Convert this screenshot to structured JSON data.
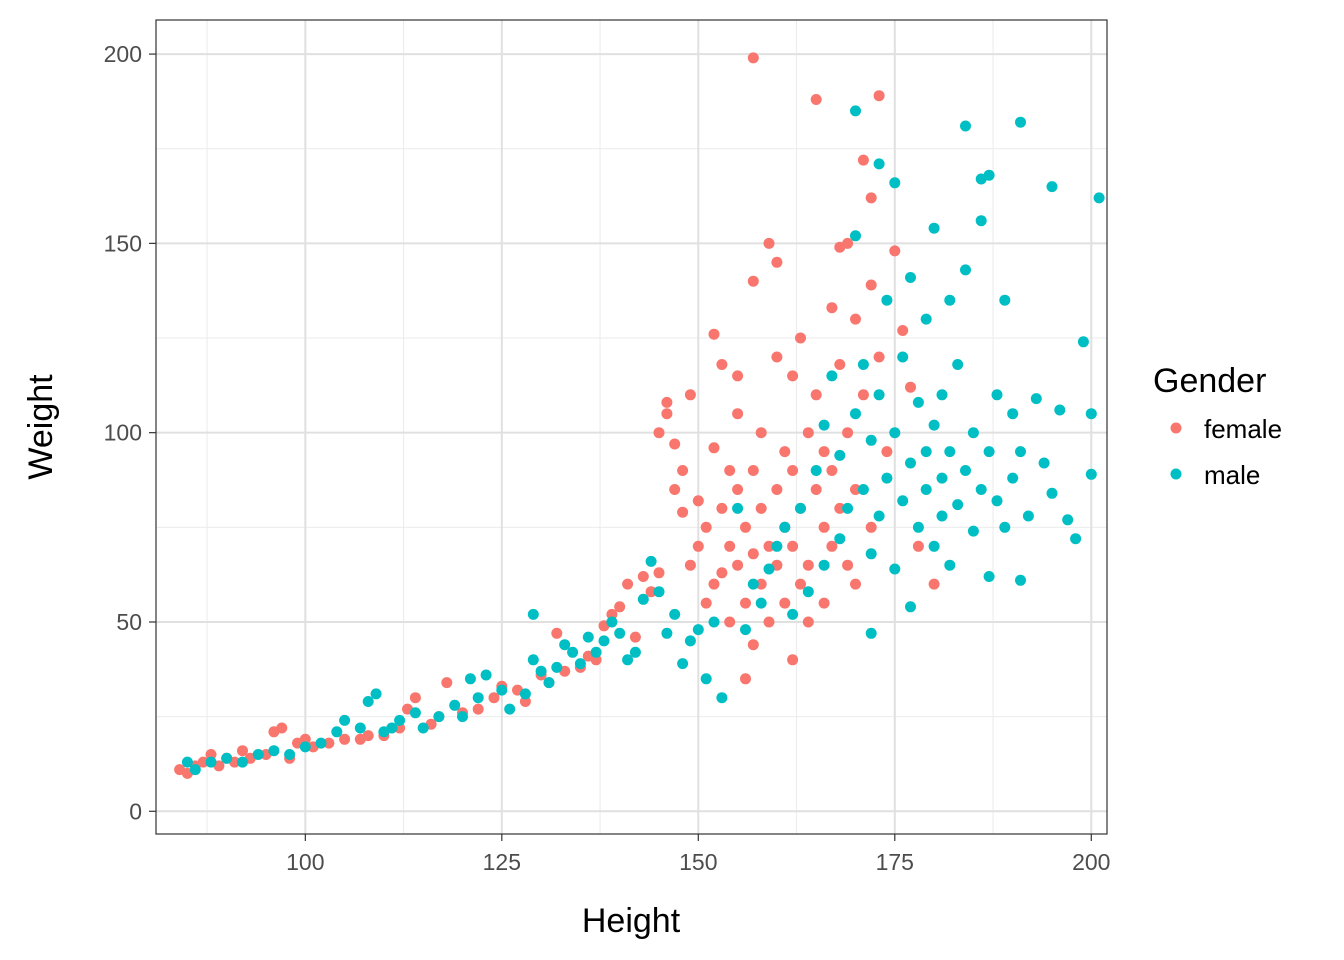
{
  "chart_data": {
    "type": "scatter",
    "xlabel": "Height",
    "ylabel": "Weight",
    "xlim": [
      81,
      202
    ],
    "ylim": [
      -6,
      209
    ],
    "x_ticks": [
      100,
      125,
      150,
      175,
      200
    ],
    "y_ticks": [
      0,
      50,
      100,
      150,
      200
    ],
    "grid": true,
    "legend": {
      "title": "Gender",
      "position": "right"
    },
    "series": [
      {
        "name": "female",
        "color": "#F8766D",
        "points": [
          [
            84,
            11
          ],
          [
            85,
            10
          ],
          [
            86,
            12
          ],
          [
            87,
            13
          ],
          [
            88,
            15
          ],
          [
            89,
            12
          ],
          [
            90,
            14
          ],
          [
            91,
            13
          ],
          [
            92,
            16
          ],
          [
            93,
            14
          ],
          [
            95,
            15
          ],
          [
            96,
            21
          ],
          [
            97,
            22
          ],
          [
            98,
            14
          ],
          [
            99,
            18
          ],
          [
            100,
            19
          ],
          [
            101,
            17
          ],
          [
            103,
            18
          ],
          [
            105,
            19
          ],
          [
            107,
            19
          ],
          [
            108,
            20
          ],
          [
            110,
            20
          ],
          [
            112,
            22
          ],
          [
            113,
            27
          ],
          [
            114,
            30
          ],
          [
            116,
            23
          ],
          [
            117,
            25
          ],
          [
            118,
            34
          ],
          [
            120,
            26
          ],
          [
            122,
            27
          ],
          [
            124,
            30
          ],
          [
            125,
            33
          ],
          [
            127,
            32
          ],
          [
            128,
            29
          ],
          [
            130,
            36
          ],
          [
            131,
            34
          ],
          [
            132,
            47
          ],
          [
            133,
            37
          ],
          [
            135,
            38
          ],
          [
            136,
            41
          ],
          [
            137,
            40
          ],
          [
            138,
            49
          ],
          [
            139,
            52
          ],
          [
            140,
            54
          ],
          [
            141,
            60
          ],
          [
            142,
            46
          ],
          [
            143,
            62
          ],
          [
            144,
            58
          ],
          [
            145,
            63
          ],
          [
            145,
            100
          ],
          [
            146,
            105
          ],
          [
            146,
            108
          ],
          [
            147,
            85
          ],
          [
            147,
            97
          ],
          [
            148,
            79
          ],
          [
            148,
            90
          ],
          [
            149,
            65
          ],
          [
            149,
            110
          ],
          [
            150,
            82
          ],
          [
            150,
            70
          ],
          [
            151,
            75
          ],
          [
            151,
            55
          ],
          [
            152,
            60
          ],
          [
            152,
            96
          ],
          [
            152,
            126
          ],
          [
            153,
            80
          ],
          [
            153,
            63
          ],
          [
            153,
            118
          ],
          [
            154,
            70
          ],
          [
            154,
            50
          ],
          [
            154,
            90
          ],
          [
            155,
            85
          ],
          [
            155,
            65
          ],
          [
            155,
            115
          ],
          [
            155,
            105
          ],
          [
            156,
            75
          ],
          [
            156,
            55
          ],
          [
            156,
            35
          ],
          [
            157,
            90
          ],
          [
            157,
            68
          ],
          [
            157,
            44
          ],
          [
            157,
            140
          ],
          [
            157,
            199
          ],
          [
            158,
            80
          ],
          [
            158,
            60
          ],
          [
            158,
            100
          ],
          [
            159,
            70
          ],
          [
            159,
            50
          ],
          [
            159,
            150
          ],
          [
            160,
            85
          ],
          [
            160,
            65
          ],
          [
            160,
            120
          ],
          [
            160,
            145
          ],
          [
            161,
            95
          ],
          [
            161,
            55
          ],
          [
            161,
            75
          ],
          [
            162,
            90
          ],
          [
            162,
            70
          ],
          [
            162,
            40
          ],
          [
            162,
            115
          ],
          [
            163,
            80
          ],
          [
            163,
            60
          ],
          [
            163,
            125
          ],
          [
            164,
            100
          ],
          [
            164,
            65
          ],
          [
            164,
            50
          ],
          [
            165,
            85
          ],
          [
            165,
            110
          ],
          [
            165,
            188
          ],
          [
            166,
            75
          ],
          [
            166,
            95
          ],
          [
            166,
            55
          ],
          [
            167,
            90
          ],
          [
            167,
            70
          ],
          [
            167,
            133
          ],
          [
            168,
            80
          ],
          [
            168,
            118
          ],
          [
            168,
            149
          ],
          [
            169,
            65
          ],
          [
            169,
            100
          ],
          [
            169,
            150
          ],
          [
            170,
            85
          ],
          [
            170,
            60
          ],
          [
            170,
            130
          ],
          [
            171,
            110
          ],
          [
            171,
            172
          ],
          [
            172,
            75
          ],
          [
            172,
            139
          ],
          [
            172,
            162
          ],
          [
            173,
            120
          ],
          [
            173,
            189
          ],
          [
            174,
            95
          ],
          [
            175,
            148
          ],
          [
            176,
            127
          ],
          [
            177,
            112
          ],
          [
            178,
            70
          ],
          [
            180,
            60
          ]
        ]
      },
      {
        "name": "male",
        "color": "#00BFC4",
        "points": [
          [
            85,
            13
          ],
          [
            86,
            11
          ],
          [
            88,
            13
          ],
          [
            90,
            14
          ],
          [
            92,
            13
          ],
          [
            94,
            15
          ],
          [
            96,
            16
          ],
          [
            98,
            15
          ],
          [
            100,
            17
          ],
          [
            102,
            18
          ],
          [
            104,
            21
          ],
          [
            105,
            24
          ],
          [
            107,
            22
          ],
          [
            108,
            29
          ],
          [
            109,
            31
          ],
          [
            110,
            21
          ],
          [
            111,
            22
          ],
          [
            112,
            24
          ],
          [
            114,
            26
          ],
          [
            115,
            22
          ],
          [
            117,
            25
          ],
          [
            119,
            28
          ],
          [
            120,
            25
          ],
          [
            121,
            35
          ],
          [
            122,
            30
          ],
          [
            123,
            36
          ],
          [
            125,
            32
          ],
          [
            126,
            27
          ],
          [
            128,
            31
          ],
          [
            129,
            40
          ],
          [
            129,
            52
          ],
          [
            130,
            37
          ],
          [
            131,
            34
          ],
          [
            132,
            38
          ],
          [
            133,
            44
          ],
          [
            134,
            42
          ],
          [
            135,
            39
          ],
          [
            136,
            46
          ],
          [
            137,
            42
          ],
          [
            138,
            45
          ],
          [
            139,
            50
          ],
          [
            140,
            47
          ],
          [
            141,
            40
          ],
          [
            142,
            42
          ],
          [
            143,
            56
          ],
          [
            144,
            66
          ],
          [
            145,
            58
          ],
          [
            146,
            47
          ],
          [
            147,
            52
          ],
          [
            148,
            39
          ],
          [
            149,
            45
          ],
          [
            150,
            48
          ],
          [
            151,
            35
          ],
          [
            152,
            50
          ],
          [
            153,
            30
          ],
          [
            155,
            80
          ],
          [
            156,
            48
          ],
          [
            157,
            60
          ],
          [
            158,
            55
          ],
          [
            159,
            64
          ],
          [
            160,
            70
          ],
          [
            161,
            75
          ],
          [
            162,
            52
          ],
          [
            163,
            80
          ],
          [
            164,
            58
          ],
          [
            165,
            90
          ],
          [
            166,
            65
          ],
          [
            166,
            102
          ],
          [
            167,
            115
          ],
          [
            168,
            72
          ],
          [
            168,
            94
          ],
          [
            169,
            80
          ],
          [
            170,
            105
          ],
          [
            170,
            152
          ],
          [
            170,
            185
          ],
          [
            171,
            85
          ],
          [
            171,
            118
          ],
          [
            172,
            68
          ],
          [
            172,
            98
          ],
          [
            172,
            47
          ],
          [
            173,
            110
          ],
          [
            173,
            171
          ],
          [
            173,
            78
          ],
          [
            174,
            88
          ],
          [
            174,
            135
          ],
          [
            175,
            100
          ],
          [
            175,
            166
          ],
          [
            175,
            64
          ],
          [
            176,
            82
          ],
          [
            176,
            120
          ],
          [
            177,
            92
          ],
          [
            177,
            54
          ],
          [
            177,
            141
          ],
          [
            178,
            75
          ],
          [
            178,
            108
          ],
          [
            179,
            95
          ],
          [
            179,
            130
          ],
          [
            179,
            85
          ],
          [
            180,
            70
          ],
          [
            180,
            102
          ],
          [
            180,
            154
          ],
          [
            181,
            88
          ],
          [
            181,
            78
          ],
          [
            181,
            110
          ],
          [
            182,
            95
          ],
          [
            182,
            65
          ],
          [
            182,
            135
          ],
          [
            183,
            81
          ],
          [
            183,
            118
          ],
          [
            184,
            90
          ],
          [
            184,
            181
          ],
          [
            184,
            143
          ],
          [
            185,
            100
          ],
          [
            185,
            74
          ],
          [
            186,
            85
          ],
          [
            186,
            167
          ],
          [
            186,
            156
          ],
          [
            187,
            95
          ],
          [
            187,
            62
          ],
          [
            187,
            168
          ],
          [
            188,
            110
          ],
          [
            188,
            82
          ],
          [
            189,
            75
          ],
          [
            189,
            135
          ],
          [
            190,
            88
          ],
          [
            190,
            105
          ],
          [
            191,
            95
          ],
          [
            191,
            61
          ],
          [
            191,
            182
          ],
          [
            192,
            78
          ],
          [
            193,
            109
          ],
          [
            194,
            92
          ],
          [
            195,
            84
          ],
          [
            195,
            165
          ],
          [
            196,
            106
          ],
          [
            197,
            77
          ],
          [
            198,
            72
          ],
          [
            199,
            124
          ],
          [
            200,
            89
          ],
          [
            200,
            105
          ],
          [
            201,
            162
          ]
        ]
      }
    ]
  }
}
